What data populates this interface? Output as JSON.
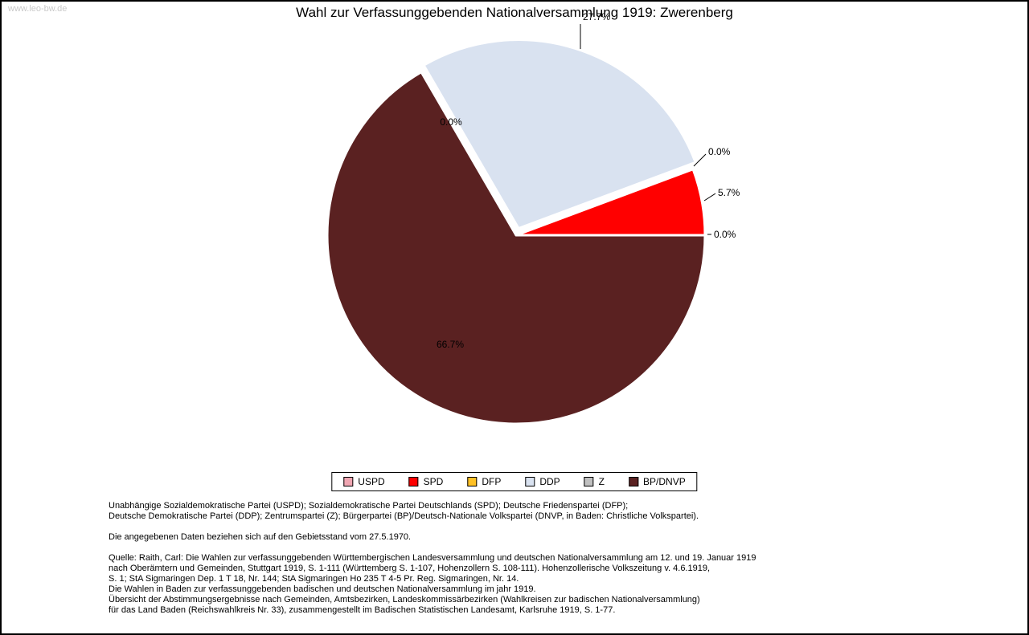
{
  "window": {
    "watermark": "www.leo-bw.de",
    "title": "Wahl zur Verfassunggebenden Nationalversammlung 1919: Zwerenberg"
  },
  "chart_data": {
    "type": "pie",
    "title": "Wahl zur Verfassunggebenden Nationalversammlung 1919: Zwerenberg",
    "unit": "percent",
    "start_angle_deg": 0,
    "direction": "counterclockwise",
    "categories": [
      "USPD",
      "SPD",
      "DFP",
      "DDP",
      "Z",
      "BP/DNVP"
    ],
    "values": [
      0.0,
      5.7,
      0.0,
      27.7,
      0.0,
      66.7
    ],
    "labels": [
      "0.0%",
      "5.7%",
      "0.0%",
      "27.7%",
      "0.0%",
      "66.7%"
    ],
    "colors": [
      "#f0a6b2",
      "#ff0000",
      "#ffc125",
      "#d9e2f0",
      "#c0c0c0",
      "#5a2121"
    ],
    "exploded_slice": "DDP",
    "legend_position": "bottom"
  },
  "footer": {
    "party_note_lines": [
      "Unabhängige Sozialdemokratische Partei (USPD); Sozialdemokratische Partei Deutschlands (SPD); Deutsche Friedenspartei (DFP);",
      "Deutsche Demokratische Partei (DDP); Zentrumspartei (Z); Bürgerpartei (BP)/Deutsch-Nationale Volkspartei (DNVP, in Baden: Christliche Volkspartei)."
    ],
    "basis_note": "Die angegebenen Daten beziehen sich auf den Gebietsstand vom 27.5.1970.",
    "source_lines": [
      "Quelle: Raith, Carl: Die Wahlen zur verfassunggebenden Württembergischen Landesversammlung und deutschen Nationalversammlung am 12. und 19. Januar 1919",
      "nach Oberämtern und Gemeinden, Stuttgart 1919, S. 1-111 (Württemberg S. 1-107, Hohenzollern S. 108-111). Hohenzollerische Volkszeitung v. 4.6.1919,",
      "S. 1; StA Sigmaringen Dep. 1 T 18, Nr. 144; StA Sigmaringen Ho 235 T 4-5 Pr. Reg. Sigmaringen, Nr. 14.",
      "Die Wahlen in Baden zur verfassunggebenden badischen und deutschen Nationalversammlung im jahr 1919.",
      "Übersicht der Abstimmungsergebnisse nach Gemeinden, Amtsbezirken, Landeskommissärbezirken (Wahlkreisen zur badischen Nationalversammlung)",
      "für das Land Baden (Reichswahlkreis Nr. 33), zusammengestellt im Badischen Statistischen Landesamt, Karlsruhe 1919, S. 1-77."
    ]
  }
}
